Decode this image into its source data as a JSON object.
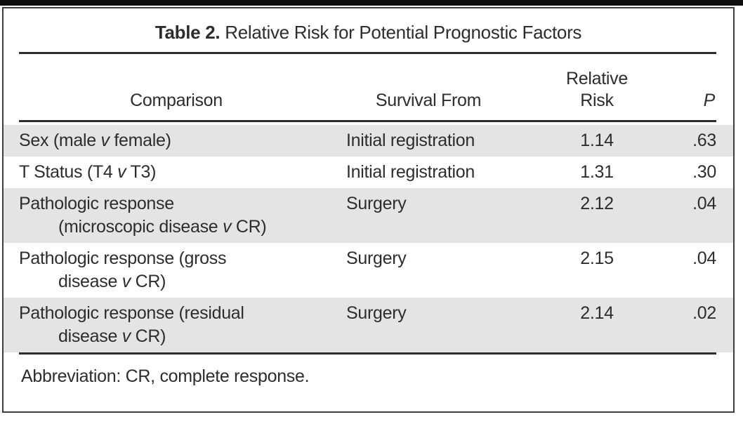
{
  "table": {
    "title": {
      "label": "Table 2.",
      "text": " Relative Risk for Potential Prognostic Factors"
    },
    "header": {
      "comparison": "Comparison",
      "survival_from": "Survival From",
      "relative_risk": [
        "Relative",
        "Risk"
      ],
      "p": "P"
    },
    "rows": [
      {
        "shaded": true,
        "comparison": [
          {
            "text": "Sex (male "
          },
          {
            "text": "v",
            "italic": true
          },
          {
            "text": " female)"
          }
        ],
        "survival_from": "Initial registration",
        "relative_risk": "1.14",
        "p": ".63"
      },
      {
        "shaded": false,
        "comparison": [
          {
            "text": "T Status (T4 "
          },
          {
            "text": "v",
            "italic": true
          },
          {
            "text": " T3)"
          }
        ],
        "survival_from": "Initial registration",
        "relative_risk": "1.31",
        "p": ".30"
      },
      {
        "shaded": true,
        "comparison": [
          {
            "text": "Pathologic response\n(microscopic disease "
          },
          {
            "text": "v",
            "italic": true
          },
          {
            "text": " CR)"
          }
        ],
        "survival_from": "Surgery",
        "relative_risk": "2.12",
        "p": ".04"
      },
      {
        "shaded": false,
        "comparison": [
          {
            "text": "Pathologic response (gross\ndisease "
          },
          {
            "text": "v",
            "italic": true
          },
          {
            "text": " CR)"
          }
        ],
        "survival_from": "Surgery",
        "relative_risk": "2.15",
        "p": ".04"
      },
      {
        "shaded": true,
        "comparison": [
          {
            "text": "Pathologic response (residual\ndisease "
          },
          {
            "text": "v",
            "italic": true
          },
          {
            "text": " CR)"
          }
        ],
        "survival_from": "Surgery",
        "relative_risk": "2.14",
        "p": ".02"
      }
    ],
    "footnote": "Abbreviation: CR, complete response."
  },
  "colors": {
    "row_shade": "#e4e4e4",
    "text": "#2d2d2d",
    "rule": "#2e2e2e",
    "frame_border": "#3e3e3e",
    "top_bar": "#0e0e0e",
    "background": "#ffffff"
  }
}
